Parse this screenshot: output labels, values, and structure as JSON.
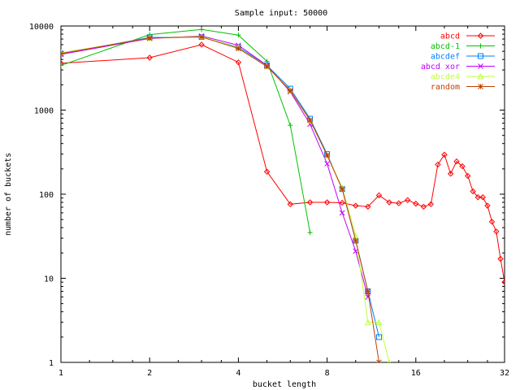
{
  "chart_data": {
    "type": "line",
    "title": "Sample input: 50000",
    "xlabel": "bucket length",
    "ylabel": "number of buckets",
    "x_scale": "log2",
    "y_scale": "log10",
    "xlim": [
      1,
      32
    ],
    "ylim": [
      1,
      10000
    ],
    "x_ticks": [
      1,
      2,
      4,
      8,
      16,
      32
    ],
    "x_tick_labels": [
      "1",
      "2",
      "4",
      "8",
      "16",
      "32"
    ],
    "y_ticks": [
      1,
      10,
      100,
      1000,
      10000
    ],
    "y_tick_labels": [
      "1",
      "10",
      "100",
      "1000",
      "10000"
    ],
    "grid": false,
    "legend_position": "top-right",
    "series": [
      {
        "name": "abcd",
        "color": "#ff0000",
        "marker": "diamond",
        "x": [
          1,
          2,
          3,
          4,
          5,
          6,
          7,
          8,
          9,
          10,
          11,
          12,
          13,
          14,
          15,
          16,
          17,
          18,
          19,
          20,
          21,
          22,
          23,
          24,
          25,
          26,
          27,
          28,
          29,
          30,
          31,
          32
        ],
        "y": [
          3600,
          4200,
          6000,
          3700,
          185,
          76,
          80,
          80,
          79,
          73,
          71,
          97,
          80,
          78,
          85,
          77,
          71,
          76,
          225,
          295,
          175,
          245,
          215,
          165,
          108,
          92,
          92,
          73,
          47,
          36,
          17,
          9
        ]
      },
      {
        "name": "abcd-1",
        "color": "#00c000",
        "marker": "plus",
        "x": [
          1,
          2,
          3,
          4,
          5,
          6,
          7
        ],
        "y": [
          3400,
          7900,
          9100,
          7800,
          3800,
          660,
          35
        ]
      },
      {
        "name": "abcdef",
        "color": "#0080ff",
        "marker": "square",
        "x": [
          1,
          2,
          3,
          4,
          5,
          6,
          7,
          8,
          9,
          10,
          11,
          12
        ],
        "y": [
          4700,
          7300,
          7400,
          5600,
          3400,
          1800,
          790,
          300,
          115,
          28,
          7,
          2
        ]
      },
      {
        "name": "abcd xor",
        "color": "#c000ff",
        "marker": "cross",
        "x": [
          1,
          2,
          3,
          4,
          5,
          6,
          7,
          8,
          9,
          10,
          11
        ],
        "y": [
          4600,
          7100,
          7600,
          5900,
          3400,
          1650,
          680,
          230,
          60,
          21,
          6
        ]
      },
      {
        "name": "abcde4",
        "color": "#c0ff40",
        "marker": "triangle",
        "x": [
          1,
          2,
          3,
          4,
          5,
          6,
          7,
          8,
          9,
          10,
          11,
          12,
          13
        ],
        "y": [
          4800,
          7200,
          7500,
          5500,
          3300,
          1700,
          750,
          290,
          120,
          32,
          3,
          3,
          1
        ]
      },
      {
        "name": "random",
        "color": "#c04000",
        "marker": "star",
        "x": [
          1,
          2,
          3,
          4,
          5,
          6,
          7,
          8,
          9,
          10,
          11,
          12
        ],
        "y": [
          4700,
          7200,
          7400,
          5400,
          3300,
          1700,
          760,
          290,
          115,
          28,
          7,
          1
        ]
      }
    ]
  }
}
